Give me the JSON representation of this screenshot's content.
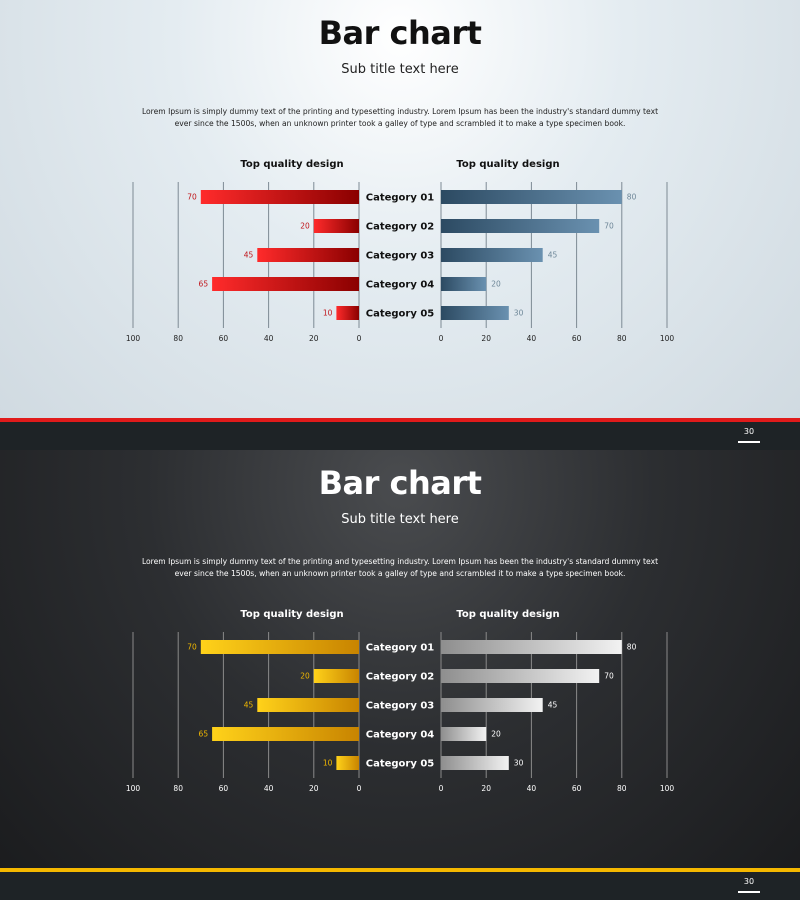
{
  "slides": [
    {
      "id": "light",
      "title": "Bar chart",
      "subtitle": "Sub title text here",
      "body": "Lorem Ipsum is simply dummy text of the printing and typesetting industry. Lorem Ipsum has been the industry's standard dummy text ever since the 1500s, when an unknown printer took a galley of type and scrambled it to make a type specimen book.",
      "page_number": "30",
      "colors": {
        "left_bar_light": "#ff2b2b",
        "left_bar_dark": "#8a0000",
        "left_value": "#c0151a",
        "right_bar_light": "#6a91b0",
        "right_bar_dark": "#2c4a62",
        "right_value": "#6e8798",
        "grid": "#7d8a94",
        "tick": "#222222",
        "heading": "#111111",
        "category": "#111111",
        "stripe": "#e01b1b"
      }
    },
    {
      "id": "dark",
      "title": "Bar chart",
      "subtitle": "Sub title text here",
      "body": "Lorem Ipsum is simply dummy text of the printing and typesetting industry. Lorem Ipsum has been the industry's standard dummy text ever since the 1500s, when an unknown printer took a galley of type and scrambled it to make a type specimen book.",
      "page_number": "30",
      "colors": {
        "left_bar_light": "#ffd21a",
        "left_bar_dark": "#c88400",
        "left_value": "#f1b700",
        "right_bar_light": "#f2f2f2",
        "right_bar_dark": "#8e8e8e",
        "right_value": "#ffffff",
        "grid": "#8a8a8a",
        "tick": "#ffffff",
        "heading": "#ffffff",
        "category": "#ffffff",
        "stripe": "#f5b800"
      }
    }
  ],
  "chart_data": [
    {
      "type": "bar",
      "orientation": "horizontal",
      "layout": "back-to-back",
      "categories": [
        "Category 01",
        "Category 02",
        "Category 03",
        "Category 04",
        "Category 05"
      ],
      "series": [
        {
          "name": "Top quality design",
          "side": "left",
          "values": [
            70,
            20,
            45,
            65,
            10
          ]
        },
        {
          "name": "Top quality design",
          "side": "right",
          "values": [
            80,
            70,
            45,
            20,
            30
          ]
        }
      ],
      "xlim": [
        0,
        100
      ],
      "ticks": [
        0,
        20,
        40,
        60,
        80,
        100
      ],
      "grid": true
    },
    {
      "type": "bar",
      "orientation": "horizontal",
      "layout": "back-to-back",
      "categories": [
        "Category 01",
        "Category 02",
        "Category 03",
        "Category 04",
        "Category 05"
      ],
      "series": [
        {
          "name": "Top quality design",
          "side": "left",
          "values": [
            70,
            20,
            45,
            65,
            10
          ]
        },
        {
          "name": "Top quality design",
          "side": "right",
          "values": [
            80,
            70,
            45,
            20,
            30
          ]
        }
      ],
      "xlim": [
        0,
        100
      ],
      "ticks": [
        0,
        20,
        40,
        60,
        80,
        100
      ],
      "grid": true
    }
  ]
}
